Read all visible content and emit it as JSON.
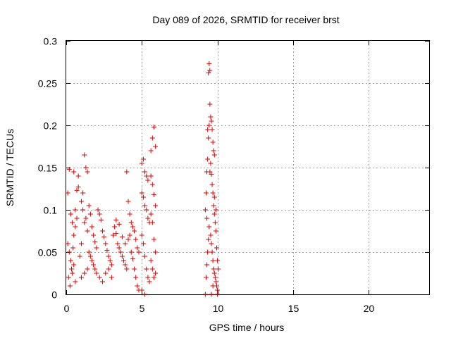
{
  "chart_data": {
    "type": "scatter",
    "title": "Day 089 of 2026, SRMTID for receiver brst",
    "xlabel": "GPS time / hours",
    "ylabel": "SRMTID / TECUs",
    "xlim": [
      0,
      24
    ],
    "ylim": [
      0,
      0.3
    ],
    "xticks": [
      0,
      5,
      10,
      15,
      20
    ],
    "xtick_labels": [
      "0",
      "5",
      "10",
      "15",
      "20"
    ],
    "yticks": [
      0,
      0.05,
      0.1,
      0.15,
      0.2,
      0.25,
      0.3
    ],
    "ytick_labels": [
      "0",
      "0.05",
      "0.1",
      "0.15",
      "0.2",
      "0.25",
      "0.3"
    ],
    "grid": true,
    "marker": "+",
    "point_color": "#e00000",
    "series": [
      {
        "name": "SRMTID",
        "points": [
          [
            0.1,
            0.12
          ],
          [
            0.2,
            0.148
          ],
          [
            0.3,
            0.095
          ],
          [
            0.4,
            0.085
          ],
          [
            0.5,
            0.145
          ],
          [
            0.1,
            0.06
          ],
          [
            0.2,
            0.05
          ],
          [
            0.3,
            0.04
          ],
          [
            0.15,
            0.02
          ],
          [
            0.25,
            0.01
          ],
          [
            0.35,
            0.03
          ],
          [
            0.45,
            0.055
          ],
          [
            0.5,
            0.07
          ],
          [
            0.6,
            0.08
          ],
          [
            0.7,
            0.123
          ],
          [
            0.8,
            0.127
          ],
          [
            0.8,
            0.14
          ],
          [
            0.6,
            0.1
          ],
          [
            0.7,
            0.09
          ],
          [
            0.5,
            0.035
          ],
          [
            0.4,
            0.025
          ],
          [
            0.6,
            0.015
          ],
          [
            0.9,
            0.045
          ],
          [
            1.0,
            0.06
          ],
          [
            1.1,
            0.12
          ],
          [
            1.2,
            0.165
          ],
          [
            1.3,
            0.15
          ],
          [
            1.4,
            0.145
          ],
          [
            1.0,
            0.11
          ],
          [
            1.1,
            0.1
          ],
          [
            1.2,
            0.085
          ],
          [
            1.3,
            0.09
          ],
          [
            1.4,
            0.075
          ],
          [
            1.5,
            0.105
          ],
          [
            1.6,
            0.095
          ],
          [
            1.7,
            0.08
          ],
          [
            1.8,
            0.07
          ],
          [
            1.9,
            0.062
          ],
          [
            2.0,
            0.055
          ],
          [
            1.5,
            0.05
          ],
          [
            1.6,
            0.045
          ],
          [
            1.7,
            0.04
          ],
          [
            1.8,
            0.035
          ],
          [
            1.9,
            0.03
          ],
          [
            2.0,
            0.025
          ],
          [
            1.0,
            0.02
          ],
          [
            1.2,
            0.025
          ],
          [
            1.4,
            0.03
          ],
          [
            2.1,
            0.1
          ],
          [
            2.2,
            0.095
          ],
          [
            2.3,
            0.088
          ],
          [
            2.4,
            0.075
          ],
          [
            2.5,
            0.068
          ],
          [
            2.6,
            0.06
          ],
          [
            2.7,
            0.052
          ],
          [
            2.8,
            0.045
          ],
          [
            2.9,
            0.04
          ],
          [
            3.0,
            0.035
          ],
          [
            2.2,
            0.02
          ],
          [
            2.4,
            0.015
          ],
          [
            2.6,
            0.025
          ],
          [
            2.8,
            0.03
          ],
          [
            3.0,
            0.02
          ],
          [
            3.1,
            0.07
          ],
          [
            3.2,
            0.08
          ],
          [
            3.3,
            0.072
          ],
          [
            3.4,
            0.06
          ],
          [
            3.5,
            0.055
          ],
          [
            3.6,
            0.05
          ],
          [
            3.7,
            0.045
          ],
          [
            3.8,
            0.04
          ],
          [
            3.9,
            0.035
          ],
          [
            4.0,
            0.03
          ],
          [
            3.3,
            0.088
          ],
          [
            3.5,
            0.083
          ],
          [
            3.7,
            0.068
          ],
          [
            3.9,
            0.06
          ],
          [
            4.1,
            0.065
          ],
          [
            4.2,
            0.07
          ],
          [
            4.3,
            0.05
          ],
          [
            4.4,
            0.042
          ],
          [
            4.5,
            0.03
          ],
          [
            4.6,
            0.02
          ],
          [
            4.7,
            0.01
          ],
          [
            4.8,
            0.005
          ],
          [
            4.0,
            0.145
          ],
          [
            4.1,
            0.11
          ],
          [
            4.2,
            0.095
          ],
          [
            4.3,
            0.085
          ],
          [
            4.4,
            0.08
          ],
          [
            4.5,
            0.075
          ],
          [
            4.6,
            0.065
          ],
          [
            4.7,
            0.055
          ],
          [
            4.8,
            0.05
          ],
          [
            5.0,
            0.155
          ],
          [
            5.1,
            0.16
          ],
          [
            5.2,
            0.145
          ],
          [
            5.3,
            0.14
          ],
          [
            5.4,
            0.135
          ],
          [
            5.0,
            0.12
          ],
          [
            5.1,
            0.115
          ],
          [
            5.2,
            0.105
          ],
          [
            5.3,
            0.1
          ],
          [
            5.4,
            0.09
          ],
          [
            5.5,
            0.085
          ],
          [
            5.0,
            0.07
          ],
          [
            5.1,
            0.06
          ],
          [
            5.2,
            0.045
          ],
          [
            5.3,
            0.03
          ],
          [
            5.4,
            0.02
          ],
          [
            5.5,
            0.015
          ],
          [
            5.0,
            0.005
          ],
          [
            5.2,
            0.0
          ],
          [
            5.6,
            0.17
          ],
          [
            5.7,
            0.185
          ],
          [
            5.8,
            0.198
          ],
          [
            5.9,
            0.175
          ],
          [
            5.6,
            0.14
          ],
          [
            5.7,
            0.13
          ],
          [
            5.8,
            0.118
          ],
          [
            5.9,
            0.105
          ],
          [
            5.6,
            0.095
          ],
          [
            5.7,
            0.085
          ],
          [
            5.8,
            0.065
          ],
          [
            5.9,
            0.05
          ],
          [
            5.6,
            0.04
          ],
          [
            5.7,
            0.03
          ],
          [
            5.8,
            0.02
          ],
          [
            5.9,
            0.025
          ],
          [
            9.2,
            0.0
          ],
          [
            9.25,
            0.02
          ],
          [
            9.3,
            0.035
          ],
          [
            9.35,
            0.05
          ],
          [
            9.4,
            0.065
          ],
          [
            9.45,
            0.08
          ],
          [
            9.2,
            0.1
          ],
          [
            9.25,
            0.12
          ],
          [
            9.3,
            0.145
          ],
          [
            9.35,
            0.16
          ],
          [
            9.4,
            0.185
          ],
          [
            9.45,
            0.2
          ],
          [
            9.5,
            0.225
          ],
          [
            9.4,
            0.262
          ],
          [
            9.45,
            0.273
          ],
          [
            9.5,
            0.265
          ],
          [
            9.35,
            0.195
          ],
          [
            9.3,
            0.09
          ],
          [
            9.55,
            0.21
          ],
          [
            9.6,
            0.205
          ],
          [
            9.65,
            0.195
          ],
          [
            9.7,
            0.18
          ],
          [
            9.75,
            0.17
          ],
          [
            9.8,
            0.165
          ],
          [
            9.55,
            0.155
          ],
          [
            9.6,
            0.142
          ],
          [
            9.65,
            0.13
          ],
          [
            9.7,
            0.12
          ],
          [
            9.75,
            0.105
          ],
          [
            9.8,
            0.095
          ],
          [
            9.85,
            0.085
          ],
          [
            9.9,
            0.075
          ],
          [
            9.55,
            0.07
          ],
          [
            9.6,
            0.06
          ],
          [
            9.65,
            0.05
          ],
          [
            9.7,
            0.04
          ],
          [
            9.75,
            0.03
          ],
          [
            9.8,
            0.025
          ],
          [
            9.85,
            0.02
          ],
          [
            9.9,
            0.015
          ],
          [
            9.95,
            0.01
          ],
          [
            10.0,
            0.005
          ],
          [
            10.05,
            0.03
          ],
          [
            10.0,
            0.04
          ],
          [
            9.95,
            0.055
          ],
          [
            9.9,
            0.1
          ],
          [
            10.0,
            0.0
          ],
          [
            9.5,
            0.145
          ],
          [
            9.6,
            0.0
          ],
          [
            9.7,
            0.01
          ],
          [
            9.8,
            0.115
          ]
        ]
      }
    ]
  }
}
